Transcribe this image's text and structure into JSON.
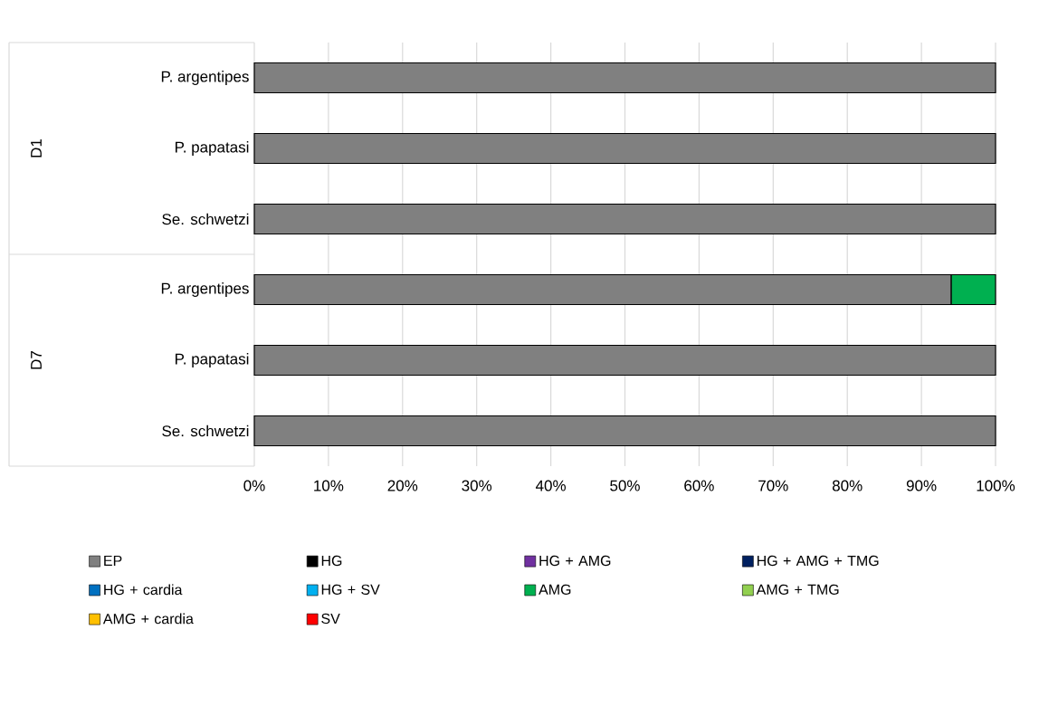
{
  "chart_data": {
    "type": "bar",
    "orientation": "horizontal",
    "stacked": true,
    "categories": [
      "P. argentipes",
      "P. papatasi",
      "Se. schwetzi",
      "P. argentipes",
      "P. papatasi",
      "Se. schwetzi"
    ],
    "annotations": [
      "D1",
      "D7"
    ],
    "series": [
      {
        "name": "EP",
        "color": "#808080",
        "values": [
          100,
          100,
          100,
          94,
          100,
          100
        ]
      },
      {
        "name": "HG",
        "color": "#000000",
        "values": [
          0,
          0,
          0,
          0,
          0,
          0
        ]
      },
      {
        "name": "HG + AMG",
        "color": "#7030a0",
        "values": [
          0,
          0,
          0,
          0,
          0,
          0
        ]
      },
      {
        "name": "HG + AMG + TMG",
        "color": "#002060",
        "values": [
          0,
          0,
          0,
          0,
          0,
          0
        ]
      },
      {
        "name": "HG + cardia",
        "color": "#0070c0",
        "values": [
          0,
          0,
          0,
          0,
          0,
          0
        ]
      },
      {
        "name": "HG + SV",
        "color": "#00b0f0",
        "values": [
          0,
          0,
          0,
          0,
          0,
          0
        ]
      },
      {
        "name": "AMG",
        "color": "#00b050",
        "values": [
          0,
          0,
          0,
          6,
          0,
          0
        ]
      },
      {
        "name": "AMG + TMG",
        "color": "#92d050",
        "values": [
          0,
          0,
          0,
          0,
          0,
          0
        ]
      },
      {
        "name": "AMG + cardia",
        "color": "#ffc000",
        "values": [
          0,
          0,
          0,
          0,
          0,
          0
        ]
      },
      {
        "name": "SV",
        "color": "#ff0000",
        "values": [
          0,
          0,
          0,
          0,
          0,
          0
        ]
      }
    ],
    "xlim": [
      0,
      100
    ],
    "xticks": [
      {
        "value": 0,
        "label": "0%"
      },
      {
        "value": 10,
        "label": "10%"
      },
      {
        "value": 20,
        "label": "20%"
      },
      {
        "value": 30,
        "label": "30%"
      },
      {
        "value": 40,
        "label": "40%"
      },
      {
        "value": 50,
        "label": "50%"
      },
      {
        "value": 60,
        "label": "60%"
      },
      {
        "value": 70,
        "label": "70%"
      },
      {
        "value": 80,
        "label": "80%"
      },
      {
        "value": 90,
        "label": "90%"
      },
      {
        "value": 100,
        "label": "100%"
      }
    ],
    "grid": "x",
    "legend": "bottom"
  }
}
